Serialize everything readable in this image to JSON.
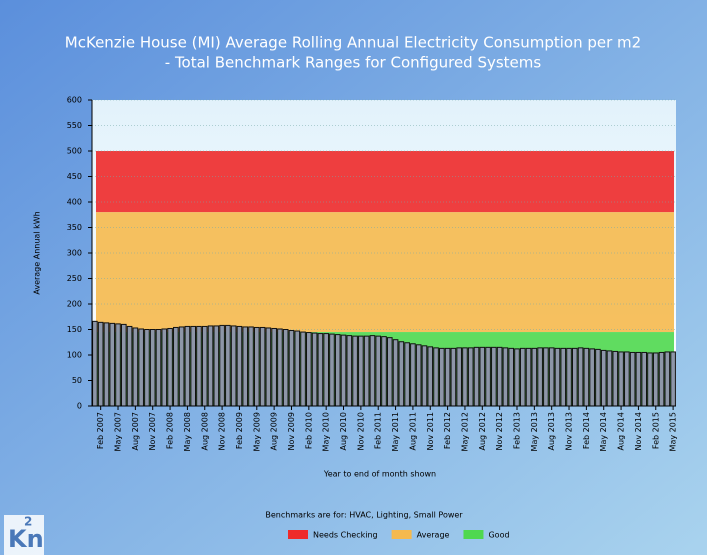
{
  "chart_data": {
    "type": "bar",
    "title": "McKenzie House (MI) Average Rolling Annual Electricity Consumption per m2",
    "subtitle": "- Total Benchmark Ranges for Configured Systems",
    "y_label": "Average Annual kWh",
    "x_label": "Year to end of month shown",
    "note": "Benchmarks are for: HVAC, Lighting, Small Power",
    "logo": {
      "base": "Kn",
      "sup": "2"
    },
    "color": "#8d96a8",
    "categories": [
      null,
      "Feb 2007",
      null,
      null,
      "May 2007",
      null,
      null,
      "Aug 2007",
      null,
      null,
      "Nov 2007",
      null,
      null,
      "Feb 2008",
      null,
      null,
      "May 2008",
      null,
      null,
      "Aug 2008",
      null,
      null,
      "Nov 2008",
      null,
      null,
      "Feb 2009",
      null,
      null,
      "May 2009",
      null,
      null,
      "Aug 2009",
      null,
      null,
      "Nov 2009",
      null,
      null,
      "Feb 2010",
      null,
      null,
      "May 2010",
      null,
      null,
      "Aug 2010",
      null,
      null,
      "Nov 2010",
      null,
      null,
      "Feb 2011",
      null,
      null,
      "May 2011",
      null,
      null,
      "Aug 2011",
      null,
      null,
      "Nov 2011",
      null,
      null,
      "Feb 2012",
      null,
      null,
      "May 2012",
      null,
      null,
      "Aug 2012",
      null,
      null,
      "Nov 2012",
      null,
      null,
      "Feb 2013",
      null,
      null,
      "May 2013",
      null,
      null,
      "Aug 2013",
      null,
      null,
      "Nov 2013",
      null,
      null,
      "Feb 2014",
      null,
      null,
      "May 2014",
      null,
      null,
      "Aug 2014",
      null,
      null,
      "Nov 2014",
      null,
      null,
      "Feb 2015",
      null,
      null,
      "May 2015"
    ],
    "values": [
      166,
      164,
      163,
      162,
      161,
      160,
      156,
      153,
      151,
      150,
      150,
      150,
      151,
      152,
      154,
      155,
      156,
      156,
      156,
      156,
      157,
      157,
      158,
      158,
      157,
      156,
      155,
      155,
      154,
      154,
      153,
      152,
      151,
      150,
      148,
      147,
      145,
      144,
      143,
      142,
      142,
      141,
      140,
      139,
      138,
      137,
      137,
      137,
      138,
      137,
      136,
      134,
      130,
      126,
      124,
      122,
      120,
      118,
      116,
      114,
      113,
      113,
      113,
      114,
      114,
      114,
      115,
      115,
      115,
      115,
      115,
      114,
      113,
      112,
      113,
      113,
      113,
      114,
      114,
      114,
      113,
      113,
      113,
      113,
      114,
      113,
      112,
      111,
      109,
      108,
      107,
      106,
      106,
      105,
      105,
      105,
      104,
      104,
      105,
      106,
      106
    ],
    "bands": [
      {
        "name": "Needs Checking",
        "color": "#ee2a2a",
        "from": 380,
        "to": 500
      },
      {
        "name": "Average",
        "color": "#f5b94e",
        "from": 145,
        "to": 380
      },
      {
        "name": "Good",
        "color": "#4fd84f",
        "from": 0,
        "to": 145
      }
    ],
    "ylim": [
      0,
      600
    ],
    "yticks": [
      0,
      50,
      100,
      150,
      200,
      250,
      300,
      350,
      400,
      450,
      500,
      550,
      600
    ],
    "grid": true
  }
}
